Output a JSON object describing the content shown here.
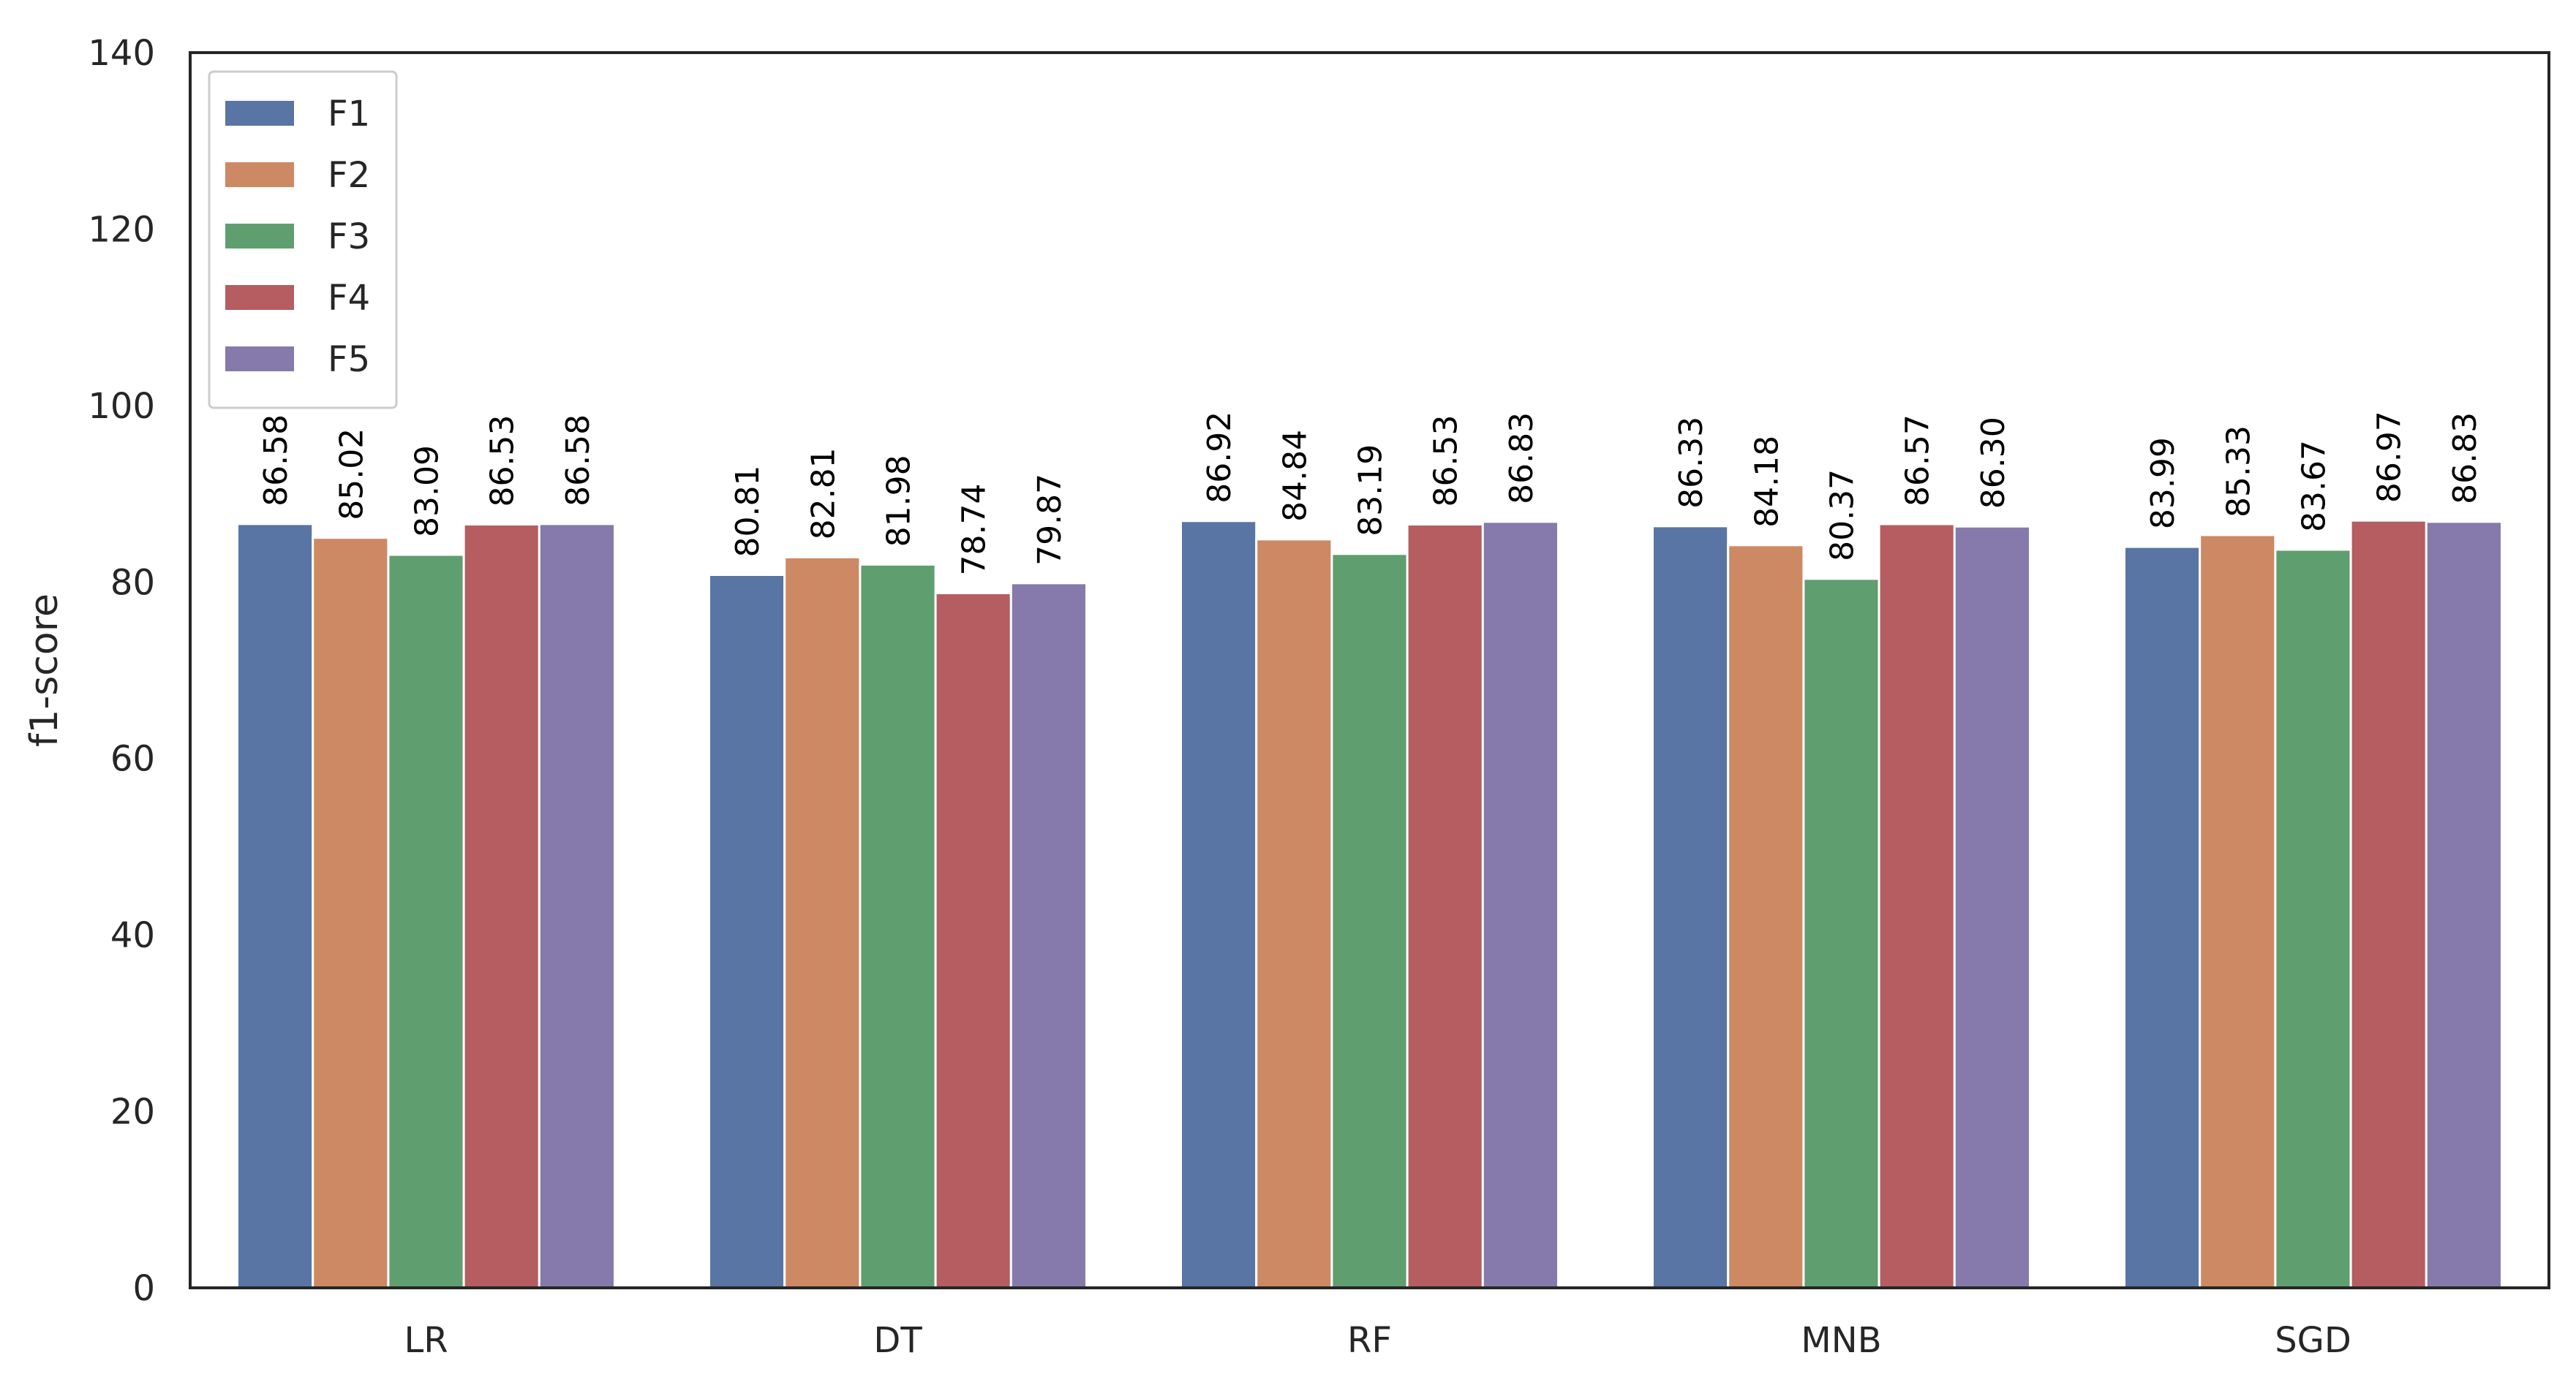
{
  "chart_data": {
    "type": "bar",
    "title": "",
    "xlabel": "",
    "ylabel": "f1-score",
    "ylim": [
      0,
      140
    ],
    "yticks": [
      0,
      20,
      40,
      60,
      80,
      100,
      120,
      140
    ],
    "grid": false,
    "legend_position": "top-left",
    "categories": [
      "LR",
      "DT",
      "RF",
      "MNB",
      "SGD"
    ],
    "series": [
      {
        "name": "F1",
        "color": "#5975a4",
        "values": [
          86.58,
          80.81,
          86.92,
          86.33,
          83.99
        ],
        "labels": [
          "86.58",
          "80.81",
          "86.92",
          "86.33",
          "83.99"
        ]
      },
      {
        "name": "F2",
        "color": "#cc8963",
        "values": [
          85.02,
          82.81,
          84.84,
          84.18,
          85.33
        ],
        "labels": [
          "85.02",
          "82.81",
          "84.84",
          "84.18",
          "85.33"
        ]
      },
      {
        "name": "F3",
        "color": "#5f9e6e",
        "values": [
          83.09,
          81.98,
          83.19,
          80.37,
          83.67
        ],
        "labels": [
          "83.09",
          "81.98",
          "83.19",
          "80.37",
          "83.67"
        ]
      },
      {
        "name": "F4",
        "color": "#b55d60",
        "values": [
          86.53,
          78.74,
          86.53,
          86.57,
          86.97
        ],
        "labels": [
          "86.53",
          "78.74",
          "86.53",
          "86.57",
          "86.97"
        ]
      },
      {
        "name": "F5",
        "color": "#857aab",
        "values": [
          86.58,
          79.87,
          86.83,
          86.3,
          86.83
        ],
        "labels": [
          "86.58",
          "79.87",
          "86.83",
          "86.30",
          "86.83"
        ]
      }
    ]
  }
}
